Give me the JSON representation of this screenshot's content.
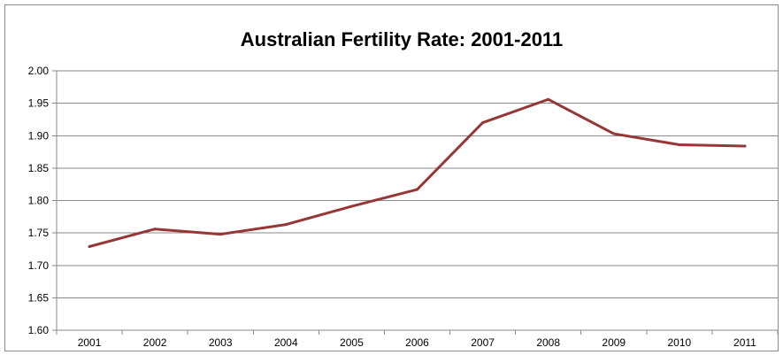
{
  "chart_data": {
    "type": "line",
    "title": "Australian Fertility Rate: 2001-2011",
    "xlabel": "",
    "ylabel": "",
    "categories": [
      "2001",
      "2002",
      "2003",
      "2004",
      "2005",
      "2006",
      "2007",
      "2008",
      "2009",
      "2010",
      "2011"
    ],
    "series": [
      {
        "values": [
          1.729,
          1.756,
          1.748,
          1.763,
          1.791,
          1.817,
          1.92,
          1.956,
          1.903,
          1.886,
          1.884
        ],
        "color": "#953735"
      }
    ],
    "ylim": [
      1.6,
      2.0
    ],
    "yticks": [
      "1.60",
      "1.65",
      "1.70",
      "1.75",
      "1.80",
      "1.85",
      "1.90",
      "1.95",
      "2.00"
    ],
    "grid": true,
    "legend": "none"
  }
}
